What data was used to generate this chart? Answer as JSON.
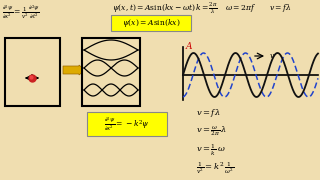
{
  "bg_color": "#f0deb0",
  "text_color": "#000000",
  "yellow_box_color": "#ffff00",
  "yellow_box_edge": "#aaaaaa",
  "wave_color_solid": "#111111",
  "wave_color_dashed": "#2244cc",
  "amplitude_color": "#cc0000",
  "arrow_color_yellow": "#ddaa00",
  "eq_top_left": "$\\frac{\\partial^2 \\psi}{\\partial x^2} = \\frac{1}{v^2}\\frac{\\partial^2 \\psi}{\\partial t^2}$",
  "eq_psi_xt": "$\\psi(x,t) = A\\sin(kx - \\omega t)$",
  "eq_psi_x": "$\\psi(x) = A\\sin(kx)$",
  "eq_top_right": "$k = \\frac{2\\pi}{\\lambda}\\;\\omega = 2\\pi f\\;v = f\\lambda$",
  "eq_box2": "$\\frac{\\partial^2 \\psi}{\\partial x^2} = -k^2\\psi$",
  "eq_v1": "$v = f\\lambda$",
  "eq_v2": "$v = \\frac{\\omega}{2\\pi}\\,\\lambda$",
  "eq_v3": "$v = \\frac{1}{k}\\,\\omega$",
  "eq_v4": "$\\frac{1}{v^2} = k^2\\,\\frac{1}{\\omega^2}$"
}
